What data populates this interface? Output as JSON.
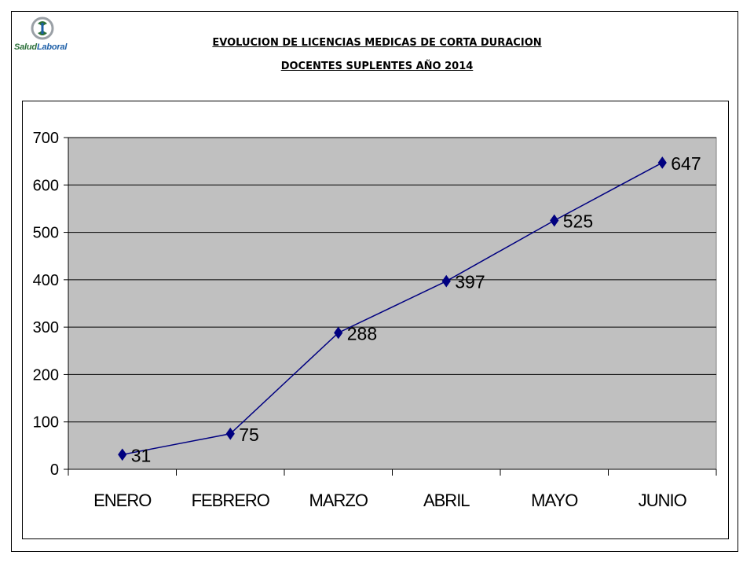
{
  "header": {
    "logo_text_a": "Salud",
    "logo_text_b": "Laboral",
    "title_line1": "EVOLUCION DE LICENCIAS MEDICAS DE CORTA DURACION",
    "title_line2": "DOCENTES SUPLENTES AÑO 2014"
  },
  "colors": {
    "plot_bg": "#c0c0c0",
    "line": "#000080",
    "grid": "#000000",
    "logo_green": "#2a6f38",
    "logo_blue": "#1d5fa8"
  },
  "chart_data": {
    "type": "line",
    "categories": [
      "ENERO",
      "FEBRERO",
      "MARZO",
      "ABRIL",
      "MAYO",
      "JUNIO"
    ],
    "values": [
      31,
      75,
      288,
      397,
      525,
      647
    ],
    "data_labels": [
      "31",
      "75",
      "288",
      "397",
      "525",
      "647"
    ],
    "ylim": [
      0,
      700
    ],
    "yticks": [
      0,
      100,
      200,
      300,
      400,
      500,
      600,
      700
    ],
    "grid": true,
    "legend": "none",
    "marker": "diamond"
  }
}
